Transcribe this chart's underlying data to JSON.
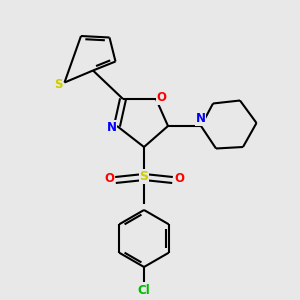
{
  "background_color": "#e8e8e8",
  "bond_color": "#000000",
  "sulfur_color": "#cccc00",
  "oxygen_color": "#ff0000",
  "nitrogen_color": "#0000ff",
  "chlorine_color": "#00bb00",
  "figsize": [
    3.0,
    3.0
  ],
  "dpi": 100,
  "xlim": [
    0,
    10
  ],
  "ylim": [
    0,
    10
  ]
}
